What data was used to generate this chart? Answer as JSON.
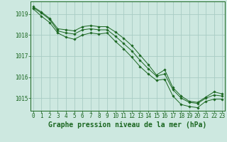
{
  "title": "Graphe pression niveau de la mer (hPa)",
  "bg_color": "#cde8e0",
  "grid_color": "#a8ccc4",
  "line_color": "#1a6620",
  "hours": [
    0,
    1,
    2,
    3,
    4,
    5,
    6,
    7,
    8,
    9,
    10,
    11,
    12,
    13,
    14,
    15,
    16,
    17,
    18,
    19,
    20,
    21,
    22,
    23
  ],
  "line1": [
    1019.35,
    1019.1,
    1018.8,
    1018.3,
    1018.25,
    1018.2,
    1018.4,
    1018.45,
    1018.4,
    1018.4,
    1018.15,
    1017.85,
    1017.5,
    1017.05,
    1016.6,
    1016.1,
    1016.35,
    1015.5,
    1015.1,
    1014.85,
    1014.8,
    1015.05,
    1015.3,
    1015.2
  ],
  "line2": [
    1019.3,
    1019.05,
    1018.75,
    1018.2,
    1018.1,
    1018.05,
    1018.25,
    1018.3,
    1018.25,
    1018.25,
    1017.95,
    1017.6,
    1017.25,
    1016.8,
    1016.4,
    1016.05,
    1016.15,
    1015.4,
    1015.0,
    1014.8,
    1014.75,
    1015.0,
    1015.15,
    1015.1
  ],
  "line3": [
    1019.25,
    1018.9,
    1018.6,
    1018.1,
    1017.9,
    1017.8,
    1018.0,
    1018.1,
    1018.05,
    1018.1,
    1017.7,
    1017.35,
    1016.95,
    1016.5,
    1016.15,
    1015.85,
    1015.9,
    1015.1,
    1014.7,
    1014.6,
    1014.55,
    1014.85,
    1014.95,
    1014.95
  ],
  "ylim": [
    1014.4,
    1019.6
  ],
  "yticks": [
    1015,
    1016,
    1017,
    1018,
    1019
  ],
  "xticks": [
    0,
    1,
    2,
    3,
    4,
    5,
    6,
    7,
    8,
    9,
    10,
    11,
    12,
    13,
    14,
    15,
    16,
    17,
    18,
    19,
    20,
    21,
    22,
    23
  ],
  "tick_fontsize": 5.5,
  "title_fontsize": 7.0
}
